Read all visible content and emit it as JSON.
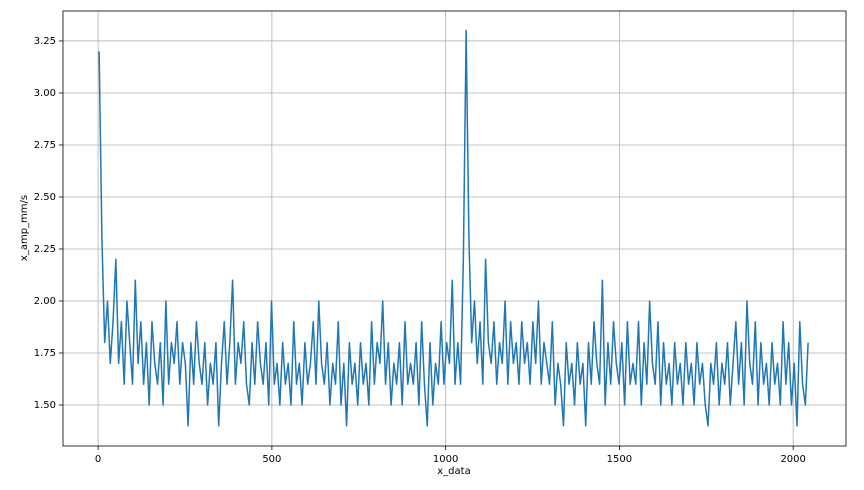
{
  "chart_data": {
    "type": "line",
    "xlabel": "x_data",
    "ylabel": "x_amp_mm/s",
    "xlim": [
      -101,
      2152
    ],
    "ylim": [
      1.303,
      3.394
    ],
    "xticks": [
      0,
      500,
      1000,
      1500,
      2000
    ],
    "yticks": [
      {
        "value": 1.5,
        "label": "1.50"
      },
      {
        "value": 1.75,
        "label": "1.75"
      },
      {
        "value": 2.0,
        "label": "2.00"
      },
      {
        "value": 2.25,
        "label": "2.25"
      },
      {
        "value": 2.5,
        "label": "2.50"
      },
      {
        "value": 2.75,
        "label": "2.75"
      },
      {
        "value": 3.0,
        "label": "3.00"
      },
      {
        "value": 3.25,
        "label": "3.25"
      }
    ],
    "grid": true,
    "series": [
      {
        "color": "#1f77b4",
        "x": [
          3,
          11,
          19,
          27,
          35,
          43,
          51,
          59,
          67,
          75,
          83,
          91,
          99,
          107,
          115,
          123,
          131,
          139,
          147,
          155,
          163,
          171,
          179,
          187,
          195,
          203,
          211,
          219,
          227,
          235,
          243,
          251,
          259,
          267,
          275,
          283,
          291,
          299,
          307,
          315,
          323,
          331,
          339,
          347,
          355,
          363,
          371,
          379,
          387,
          395,
          403,
          411,
          419,
          427,
          435,
          443,
          451,
          459,
          467,
          475,
          483,
          491,
          499,
          507,
          515,
          523,
          531,
          539,
          547,
          555,
          563,
          571,
          579,
          587,
          595,
          603,
          611,
          619,
          627,
          635,
          643,
          651,
          659,
          667,
          675,
          683,
          691,
          699,
          707,
          715,
          723,
          731,
          739,
          747,
          755,
          763,
          771,
          779,
          787,
          795,
          803,
          811,
          819,
          827,
          835,
          843,
          851,
          859,
          867,
          875,
          883,
          891,
          899,
          907,
          915,
          923,
          931,
          939,
          947,
          955,
          963,
          971,
          979,
          987,
          995,
          1003,
          1011,
          1019,
          1027,
          1035,
          1043,
          1051,
          1059,
          1067,
          1075,
          1083,
          1091,
          1099,
          1107,
          1115,
          1123,
          1131,
          1139,
          1147,
          1155,
          1163,
          1171,
          1179,
          1187,
          1195,
          1203,
          1211,
          1219,
          1227,
          1235,
          1243,
          1251,
          1259,
          1267,
          1275,
          1283,
          1291,
          1299,
          1307,
          1315,
          1323,
          1331,
          1339,
          1347,
          1355,
          1363,
          1371,
          1379,
          1387,
          1395,
          1403,
          1411,
          1419,
          1427,
          1435,
          1443,
          1451,
          1459,
          1467,
          1475,
          1483,
          1491,
          1499,
          1507,
          1515,
          1523,
          1531,
          1539,
          1547,
          1555,
          1563,
          1571,
          1579,
          1587,
          1595,
          1603,
          1611,
          1619,
          1627,
          1635,
          1643,
          1651,
          1659,
          1667,
          1675,
          1683,
          1691,
          1699,
          1707,
          1715,
          1723,
          1731,
          1739,
          1747,
          1755,
          1763,
          1771,
          1779,
          1787,
          1795,
          1803,
          1811,
          1819,
          1827,
          1835,
          1843,
          1851,
          1859,
          1867,
          1875,
          1883,
          1891,
          1899,
          1907,
          1915,
          1923,
          1931,
          1939,
          1947,
          1955,
          1963,
          1971,
          1979,
          1987,
          1995,
          2003,
          2011,
          2019,
          2027,
          2035,
          2043
        ],
        "values": [
          3.2,
          2.3,
          1.8,
          2.0,
          1.7,
          1.9,
          2.2,
          1.7,
          1.9,
          1.6,
          2.0,
          1.8,
          1.6,
          2.1,
          1.7,
          1.9,
          1.6,
          1.8,
          1.5,
          1.9,
          1.7,
          1.6,
          1.8,
          1.5,
          2.0,
          1.6,
          1.8,
          1.7,
          1.9,
          1.6,
          1.8,
          1.7,
          1.4,
          1.8,
          1.6,
          1.9,
          1.7,
          1.6,
          1.8,
          1.5,
          1.7,
          1.6,
          1.8,
          1.4,
          1.7,
          1.9,
          1.6,
          1.8,
          2.1,
          1.6,
          1.8,
          1.7,
          1.9,
          1.6,
          1.5,
          1.8,
          1.6,
          1.9,
          1.7,
          1.6,
          1.8,
          1.5,
          2.0,
          1.6,
          1.7,
          1.5,
          1.8,
          1.6,
          1.7,
          1.5,
          1.9,
          1.6,
          1.7,
          1.5,
          1.8,
          1.6,
          1.7,
          1.9,
          1.6,
          2.0,
          1.7,
          1.6,
          1.8,
          1.5,
          1.7,
          1.6,
          1.9,
          1.5,
          1.7,
          1.4,
          1.8,
          1.6,
          1.7,
          1.5,
          1.8,
          1.6,
          1.7,
          1.5,
          1.9,
          1.6,
          1.8,
          1.7,
          2.0,
          1.6,
          1.8,
          1.5,
          1.7,
          1.6,
          1.8,
          1.5,
          1.9,
          1.6,
          1.7,
          1.6,
          1.8,
          1.5,
          1.9,
          1.6,
          1.4,
          1.8,
          1.5,
          1.7,
          1.6,
          1.9,
          1.6,
          1.8,
          1.7,
          2.1,
          1.6,
          1.8,
          1.6,
          2.2,
          3.3,
          2.3,
          1.8,
          2.0,
          1.7,
          1.9,
          1.6,
          2.2,
          1.8,
          1.7,
          1.9,
          1.6,
          1.8,
          1.7,
          2.0,
          1.6,
          1.9,
          1.7,
          1.8,
          1.6,
          1.9,
          1.7,
          1.8,
          1.6,
          1.9,
          1.7,
          2.0,
          1.6,
          1.8,
          1.7,
          1.6,
          1.9,
          1.5,
          1.7,
          1.6,
          1.4,
          1.8,
          1.6,
          1.7,
          1.5,
          1.8,
          1.6,
          1.7,
          1.4,
          1.8,
          1.6,
          1.9,
          1.7,
          1.6,
          2.1,
          1.5,
          1.8,
          1.6,
          1.9,
          1.7,
          1.6,
          1.8,
          1.5,
          1.9,
          1.6,
          1.7,
          1.6,
          1.9,
          1.5,
          1.8,
          1.6,
          2.0,
          1.7,
          1.6,
          1.9,
          1.5,
          1.8,
          1.6,
          1.7,
          1.5,
          1.8,
          1.6,
          1.7,
          1.5,
          1.8,
          1.6,
          1.7,
          1.5,
          1.8,
          1.6,
          1.7,
          1.5,
          1.4,
          1.7,
          1.6,
          1.8,
          1.5,
          1.7,
          1.6,
          1.8,
          1.5,
          1.7,
          1.9,
          1.6,
          1.8,
          1.5,
          2.0,
          1.7,
          1.6,
          1.9,
          1.5,
          1.8,
          1.6,
          1.7,
          1.5,
          1.8,
          1.6,
          1.7,
          1.5,
          1.9,
          1.6,
          1.8,
          1.5,
          1.7,
          1.4,
          1.9,
          1.6,
          1.5,
          1.8
        ]
      }
    ]
  }
}
